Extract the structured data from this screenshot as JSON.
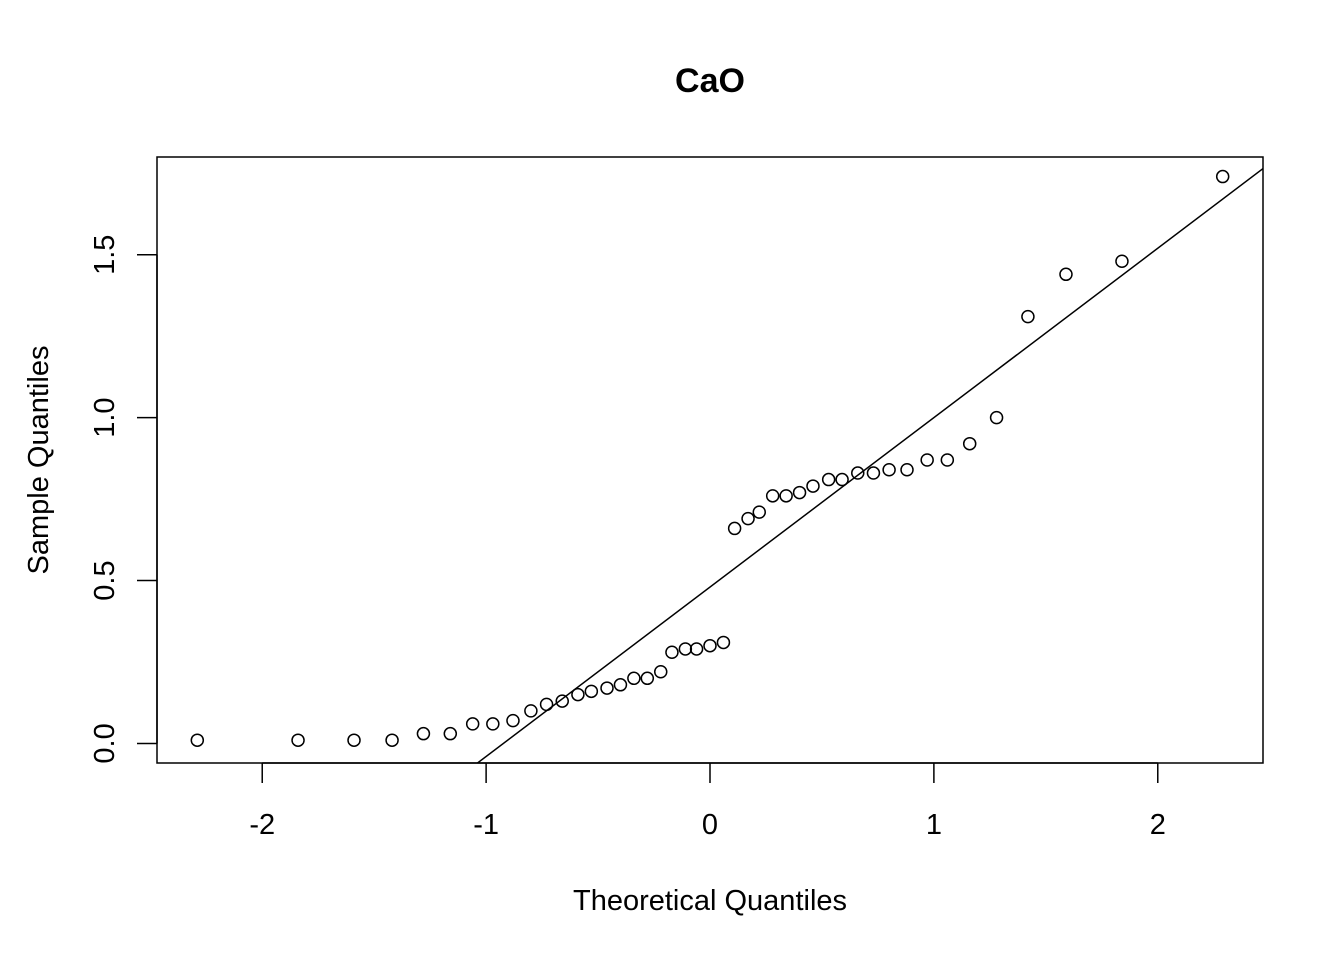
{
  "chart_data": {
    "type": "scatter",
    "title": "CaO",
    "xlabel": "Theoretical Quantiles",
    "ylabel": "Sample Quantiles",
    "xlim": [
      -2.47,
      2.47
    ],
    "ylim": [
      -0.06,
      1.8
    ],
    "x_ticks": [
      -2,
      -1,
      0,
      1,
      2
    ],
    "x_tick_labels": [
      "-2",
      "-1",
      "0",
      "1",
      "2"
    ],
    "y_ticks": [
      0.0,
      0.5,
      1.0,
      1.5
    ],
    "y_tick_labels": [
      "0.0",
      "0.5",
      "1.0",
      "1.5"
    ],
    "grid": false,
    "points": [
      {
        "x": -2.29,
        "y": 0.01
      },
      {
        "x": -1.84,
        "y": 0.01
      },
      {
        "x": -1.59,
        "y": 0.01
      },
      {
        "x": -1.42,
        "y": 0.01
      },
      {
        "x": -1.28,
        "y": 0.03
      },
      {
        "x": -1.16,
        "y": 0.03
      },
      {
        "x": -1.06,
        "y": 0.06
      },
      {
        "x": -0.97,
        "y": 0.06
      },
      {
        "x": -0.88,
        "y": 0.07
      },
      {
        "x": -0.8,
        "y": 0.1
      },
      {
        "x": -0.73,
        "y": 0.12
      },
      {
        "x": -0.66,
        "y": 0.13
      },
      {
        "x": -0.59,
        "y": 0.15
      },
      {
        "x": -0.53,
        "y": 0.16
      },
      {
        "x": -0.46,
        "y": 0.17
      },
      {
        "x": -0.4,
        "y": 0.18
      },
      {
        "x": -0.34,
        "y": 0.2
      },
      {
        "x": -0.28,
        "y": 0.2
      },
      {
        "x": -0.22,
        "y": 0.22
      },
      {
        "x": -0.17,
        "y": 0.28
      },
      {
        "x": -0.11,
        "y": 0.29
      },
      {
        "x": -0.06,
        "y": 0.29
      },
      {
        "x": 0.0,
        "y": 0.3
      },
      {
        "x": 0.06,
        "y": 0.31
      },
      {
        "x": 0.11,
        "y": 0.66
      },
      {
        "x": 0.17,
        "y": 0.69
      },
      {
        "x": 0.22,
        "y": 0.71
      },
      {
        "x": 0.28,
        "y": 0.76
      },
      {
        "x": 0.34,
        "y": 0.76
      },
      {
        "x": 0.4,
        "y": 0.77
      },
      {
        "x": 0.46,
        "y": 0.79
      },
      {
        "x": 0.53,
        "y": 0.81
      },
      {
        "x": 0.59,
        "y": 0.81
      },
      {
        "x": 0.66,
        "y": 0.83
      },
      {
        "x": 0.73,
        "y": 0.83
      },
      {
        "x": 0.8,
        "y": 0.84
      },
      {
        "x": 0.88,
        "y": 0.84
      },
      {
        "x": 0.97,
        "y": 0.87
      },
      {
        "x": 1.06,
        "y": 0.87
      },
      {
        "x": 1.16,
        "y": 0.92
      },
      {
        "x": 1.28,
        "y": 1.0
      },
      {
        "x": 1.42,
        "y": 1.31
      },
      {
        "x": 1.59,
        "y": 1.44
      },
      {
        "x": 1.84,
        "y": 1.48
      },
      {
        "x": 2.29,
        "y": 1.74
      }
    ],
    "reference_line": {
      "intercept": 0.48,
      "slope": 0.52
    }
  }
}
